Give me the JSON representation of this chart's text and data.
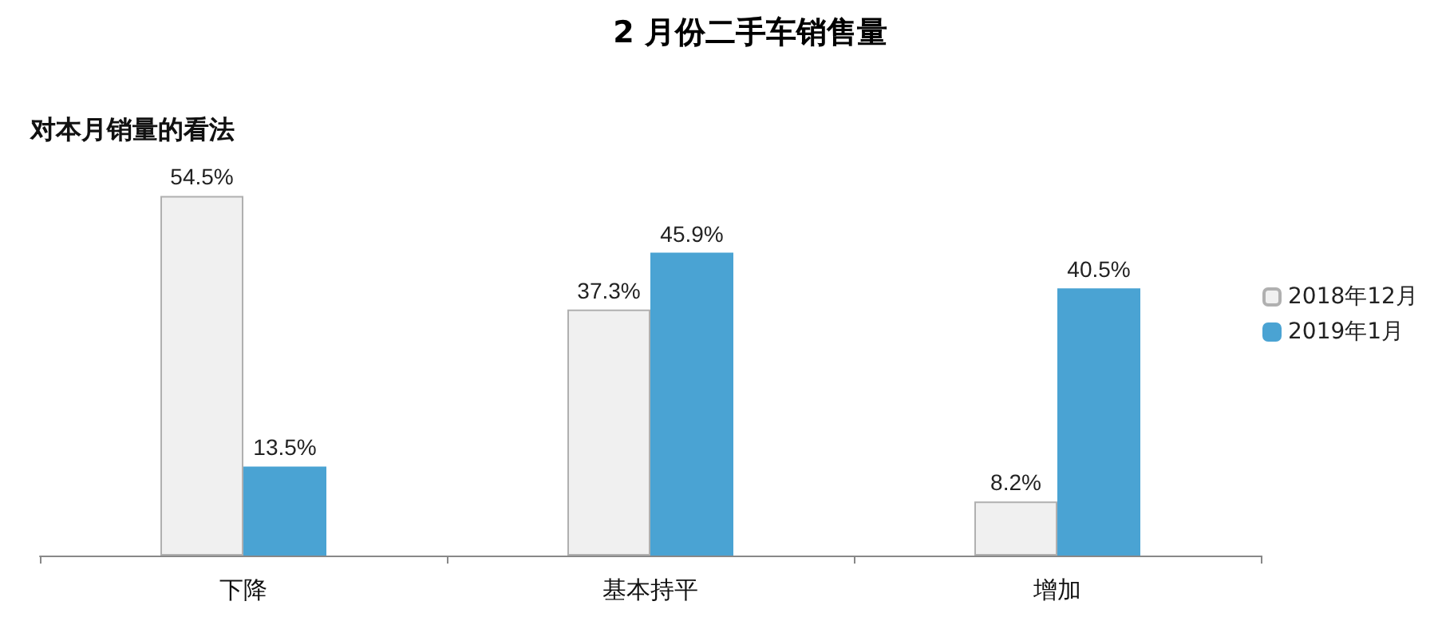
{
  "chart_data": {
    "type": "bar",
    "title": "2 月份二手车销售量",
    "subtitle": "对本月销量的看法",
    "categories": [
      "下降",
      "基本持平",
      "增加"
    ],
    "series": [
      {
        "name": "2018年12月",
        "color": "#f0f0f0",
        "values": [
          54.5,
          37.3,
          8.2
        ],
        "value_labels": [
          "54.5%",
          "37.3%",
          "8.2%"
        ]
      },
      {
        "name": "2019年1月",
        "color": "#4aa3d3",
        "values": [
          13.5,
          45.9,
          40.5
        ],
        "value_labels": [
          "13.5%",
          "45.9%",
          "40.5%"
        ]
      }
    ],
    "legend": "right"
  }
}
